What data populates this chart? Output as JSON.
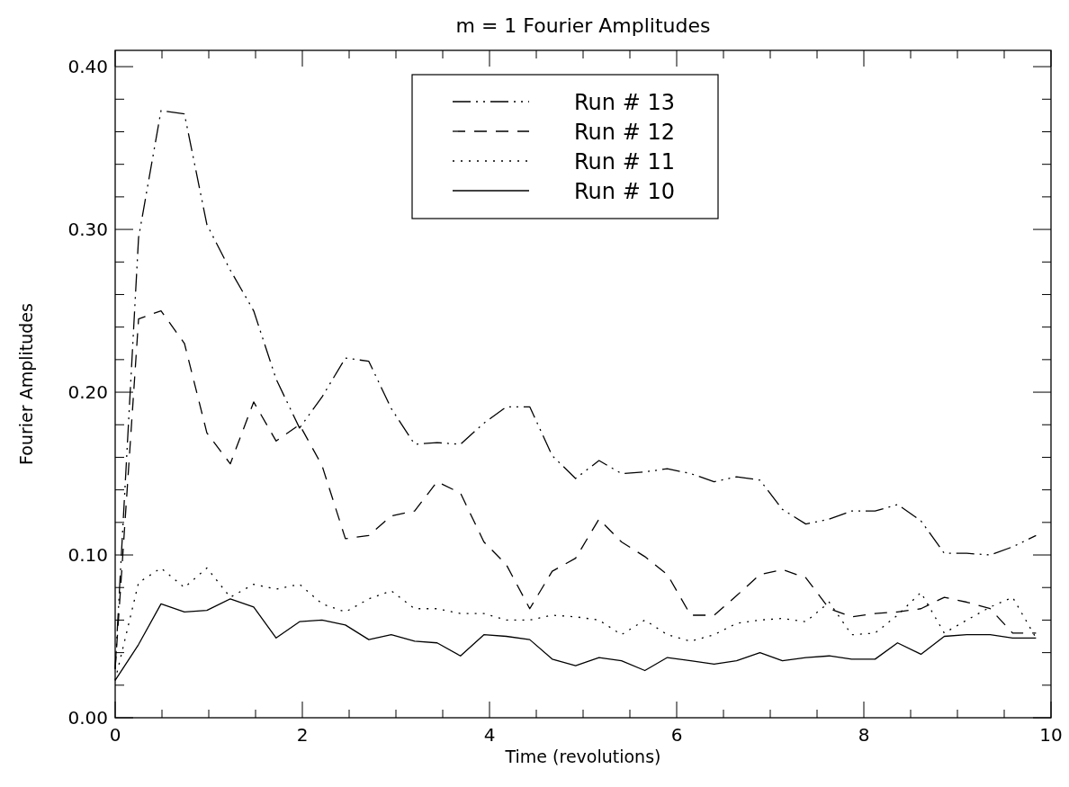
{
  "chart_data": {
    "type": "line",
    "title": "m = 1 Fourier Amplitudes",
    "xlabel": "Time (revolutions)",
    "ylabel": "Fourier Amplitudes",
    "x": [
      0,
      0.25,
      0.49,
      0.74,
      0.98,
      1.23,
      1.48,
      1.72,
      1.97,
      2.21,
      2.46,
      2.71,
      2.95,
      3.2,
      3.44,
      3.69,
      3.94,
      4.18,
      4.43,
      4.67,
      4.92,
      5.17,
      5.41,
      5.66,
      5.9,
      6.15,
      6.4,
      6.64,
      6.89,
      7.13,
      7.38,
      7.63,
      7.87,
      8.12,
      8.36,
      8.61,
      8.86,
      9.1,
      9.35,
      9.59,
      9.84
    ],
    "series": [
      {
        "name": "Run # 13",
        "color": "#000000",
        "line_style": "dashdotdot",
        "values": [
          0.03,
          0.295,
          0.373,
          0.371,
          0.303,
          0.275,
          0.25,
          0.208,
          0.178,
          0.197,
          0.221,
          0.219,
          0.19,
          0.168,
          0.169,
          0.168,
          0.181,
          0.191,
          0.191,
          0.161,
          0.147,
          0.158,
          0.15,
          0.151,
          0.153,
          0.15,
          0.145,
          0.148,
          0.146,
          0.128,
          0.119,
          0.122,
          0.127,
          0.127,
          0.131,
          0.121,
          0.101,
          0.101,
          0.1,
          0.105,
          0.112
        ]
      },
      {
        "name": "Run # 12",
        "color": "#000000",
        "line_style": "dashed",
        "values": [
          0.03,
          0.245,
          0.25,
          0.23,
          0.175,
          0.156,
          0.194,
          0.17,
          0.18,
          0.155,
          0.11,
          0.112,
          0.124,
          0.127,
          0.145,
          0.138,
          0.108,
          0.094,
          0.067,
          0.09,
          0.098,
          0.122,
          0.108,
          0.099,
          0.088,
          0.063,
          0.063,
          0.075,
          0.088,
          0.091,
          0.086,
          0.067,
          0.062,
          0.064,
          0.065,
          0.067,
          0.074,
          0.071,
          0.067,
          0.052,
          0.052
        ]
      },
      {
        "name": "Run # 11",
        "color": "#000000",
        "line_style": "dotted",
        "values": [
          0.023,
          0.083,
          0.092,
          0.08,
          0.092,
          0.074,
          0.082,
          0.079,
          0.082,
          0.07,
          0.065,
          0.073,
          0.078,
          0.067,
          0.067,
          0.064,
          0.064,
          0.06,
          0.06,
          0.063,
          0.062,
          0.06,
          0.051,
          0.06,
          0.051,
          0.047,
          0.051,
          0.058,
          0.06,
          0.061,
          0.059,
          0.071,
          0.051,
          0.052,
          0.063,
          0.077,
          0.052,
          0.06,
          0.068,
          0.074,
          0.049
        ]
      },
      {
        "name": "Run # 10",
        "color": "#000000",
        "line_style": "solid",
        "values": [
          0.023,
          0.045,
          0.07,
          0.065,
          0.066,
          0.073,
          0.068,
          0.049,
          0.059,
          0.06,
          0.057,
          0.048,
          0.051,
          0.047,
          0.046,
          0.038,
          0.051,
          0.05,
          0.048,
          0.036,
          0.032,
          0.037,
          0.035,
          0.029,
          0.037,
          0.035,
          0.033,
          0.035,
          0.04,
          0.035,
          0.037,
          0.038,
          0.036,
          0.036,
          0.046,
          0.039,
          0.05,
          0.051,
          0.051,
          0.049,
          0.049
        ]
      }
    ],
    "xlim": [
      0,
      10
    ],
    "xticks": [
      0,
      {
        "value": 0.5,
        "label": null
      },
      {
        "value": 1,
        "label": null
      },
      {
        "value": 1.5,
        "label": null
      },
      2,
      {
        "value": 2.5,
        "label": null
      },
      {
        "value": 3,
        "label": null
      },
      {
        "value": 3.5,
        "label": null
      },
      4,
      {
        "value": 4.5,
        "label": null
      },
      {
        "value": 5,
        "label": null
      },
      {
        "value": 5.5,
        "label": null
      },
      6,
      {
        "value": 6.5,
        "label": null
      },
      {
        "value": 7,
        "label": null
      },
      {
        "value": 7.5,
        "label": null
      },
      8,
      {
        "value": 8.5,
        "label": null
      },
      {
        "value": 9,
        "label": null
      },
      {
        "value": 9.5,
        "label": null
      },
      10
    ],
    "ylim": [
      0,
      0.41
    ],
    "yticks": [
      {
        "value": 0,
        "label": "0.00"
      },
      {
        "value": 0.02,
        "label": null
      },
      {
        "value": 0.04,
        "label": null
      },
      {
        "value": 0.06,
        "label": null
      },
      {
        "value": 0.08,
        "label": null
      },
      {
        "value": 0.1,
        "label": "0.10"
      },
      {
        "value": 0.12,
        "label": null
      },
      {
        "value": 0.14,
        "label": null
      },
      {
        "value": 0.16,
        "label": null
      },
      {
        "value": 0.18,
        "label": null
      },
      {
        "value": 0.2,
        "label": "0.20"
      },
      {
        "value": 0.22,
        "label": null
      },
      {
        "value": 0.24,
        "label": null
      },
      {
        "value": 0.26,
        "label": null
      },
      {
        "value": 0.28,
        "label": null
      },
      {
        "value": 0.3,
        "label": "0.30"
      },
      {
        "value": 0.32,
        "label": null
      },
      {
        "value": 0.34,
        "label": null
      },
      {
        "value": 0.36,
        "label": null
      },
      {
        "value": 0.38,
        "label": null
      },
      {
        "value": 0.4,
        "label": "0.40"
      }
    ],
    "grid": false,
    "legend": "top"
  }
}
